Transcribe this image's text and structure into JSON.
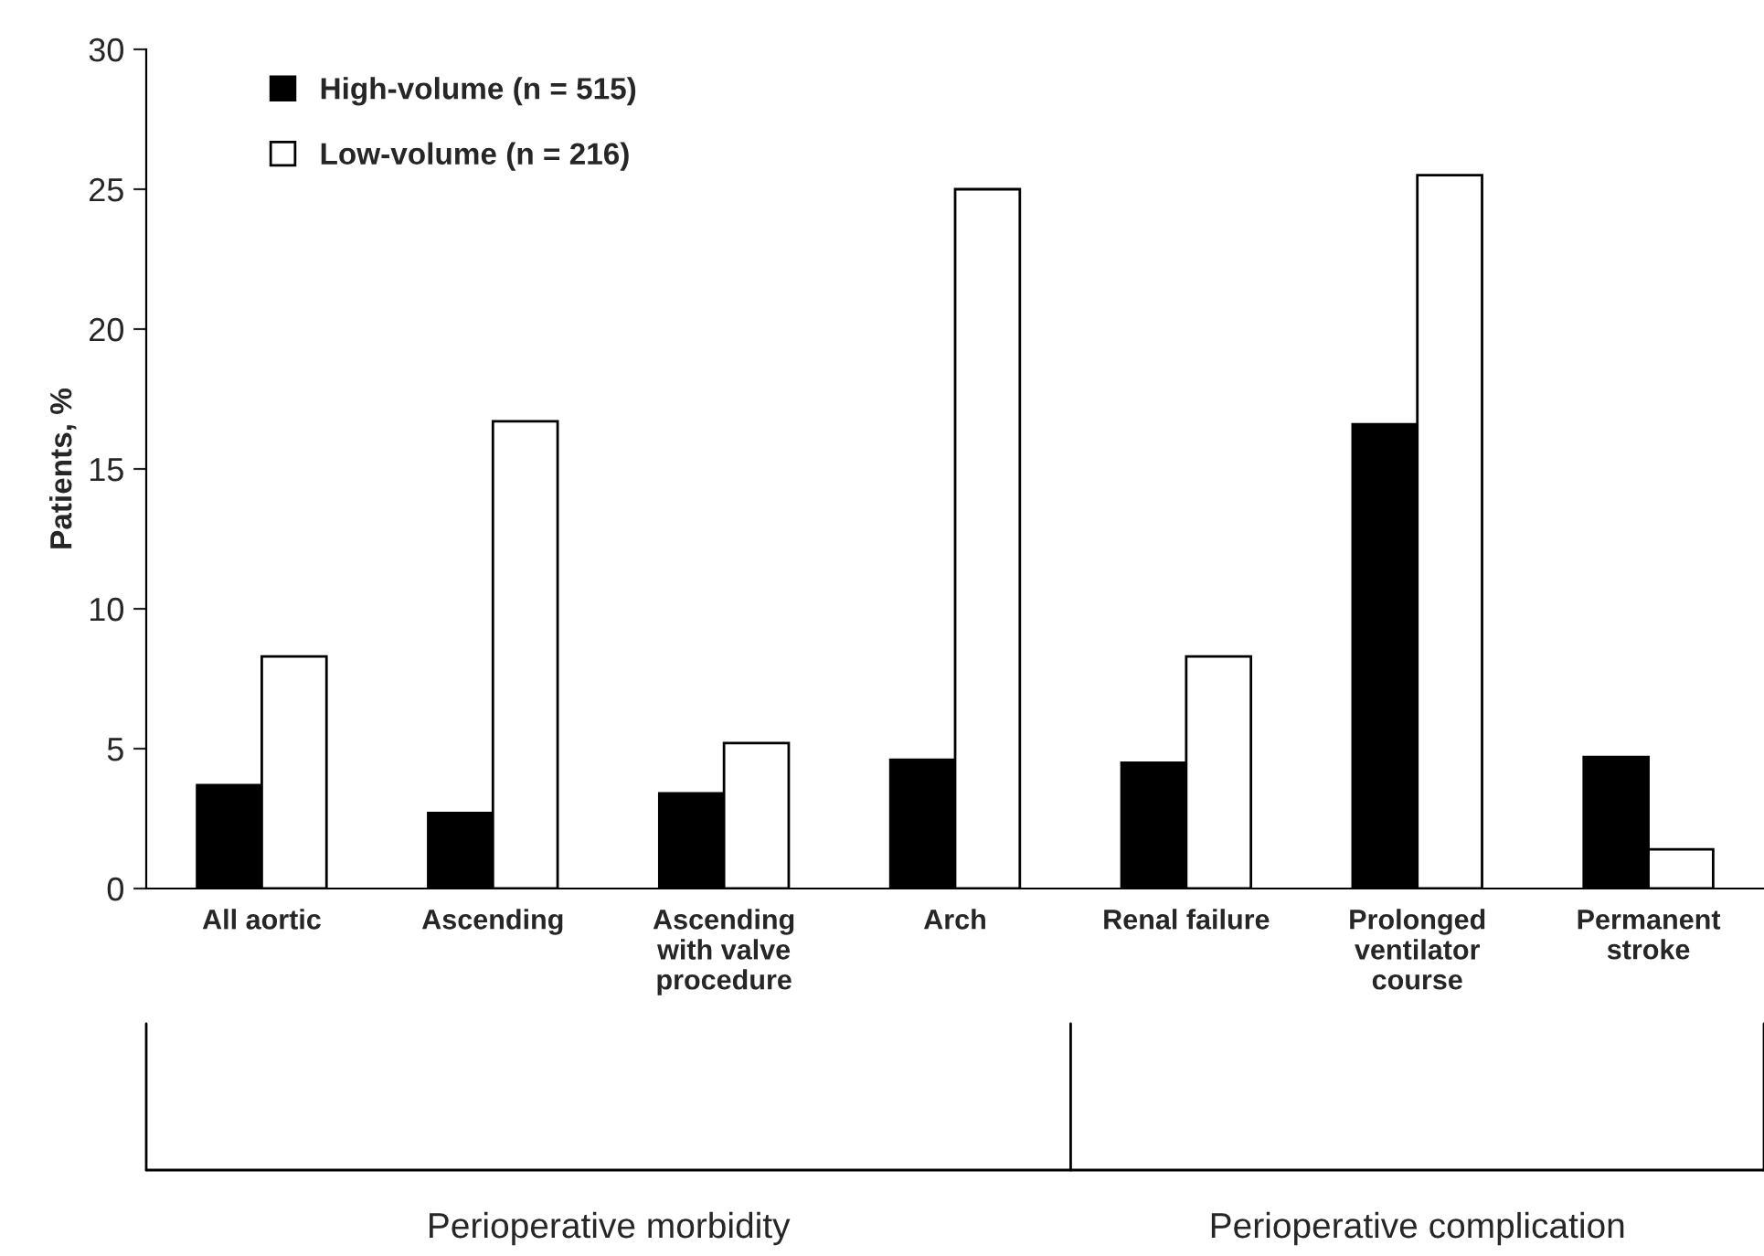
{
  "chart_data": {
    "type": "bar",
    "ylabel": "Patients, %",
    "categories": [
      "All aortic",
      "Ascending",
      "Ascending\nwith valve\nprocedure",
      "Arch",
      "Renal failure",
      "Prolonged\nventilator\ncourse",
      "Permanent\nstroke"
    ],
    "series": [
      {
        "name": "High-volume (n = 515)",
        "color": "#000000",
        "values": [
          3.7,
          2.7,
          3.4,
          4.6,
          4.5,
          16.6,
          4.7
        ]
      },
      {
        "name": "Low-volume (n = 216)",
        "color": "#ffffff",
        "values": [
          8.3,
          16.7,
          5.2,
          25.0,
          8.3,
          25.5,
          1.4
        ]
      }
    ],
    "ylim": [
      0,
      30
    ],
    "yticks": [
      0,
      5,
      10,
      15,
      20,
      25,
      30
    ],
    "grid": false,
    "legend": "top left",
    "annotations": [
      "Perioperative morbidity",
      "Perioperative complication"
    ]
  }
}
